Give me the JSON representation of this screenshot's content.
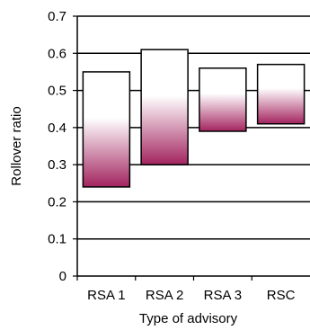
{
  "chart_data": {
    "type": "bar",
    "subtype": "floating-range",
    "xlabel": "Type of advisory",
    "ylabel": "Rollover ratio",
    "ylim": [
      0,
      0.7
    ],
    "yticks": [
      "0",
      "0.1",
      "0.2",
      "0.3",
      "0.4",
      "0.5",
      "0.6",
      "0.7"
    ],
    "grid": true,
    "categories": [
      "RSA 1",
      "RSA 2",
      "RSA 3",
      "RSC"
    ],
    "series": [
      {
        "low": [
          0.24,
          0.3,
          0.39,
          0.41
        ],
        "high": [
          0.55,
          0.61,
          0.56,
          0.57
        ]
      }
    ],
    "colors": {
      "gradient_top": "#ffffff",
      "gradient_bottom": "#a3245f",
      "border": "#000000",
      "grid": "#000000"
    }
  }
}
